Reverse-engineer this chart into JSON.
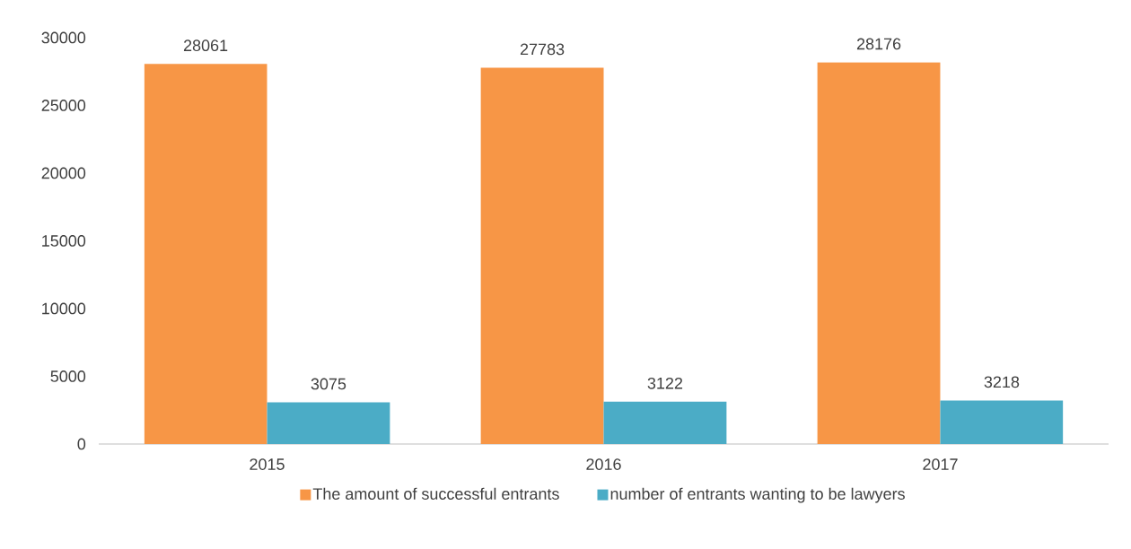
{
  "chart_data": {
    "type": "bar",
    "categories": [
      "2015",
      "2016",
      "2017"
    ],
    "series": [
      {
        "name": "The amount of successful entrants",
        "color": "#f79646",
        "values": [
          28061,
          27783,
          28176
        ]
      },
      {
        "name": "number of entrants wanting to be lawyers",
        "color": "#4bacc6",
        "values": [
          3075,
          3122,
          3218
        ]
      }
    ],
    "ylim": [
      0,
      30000
    ],
    "yticks": [
      0,
      5000,
      10000,
      15000,
      20000,
      25000,
      30000
    ],
    "data_labels": true,
    "legend": "bottom",
    "grid": false
  }
}
